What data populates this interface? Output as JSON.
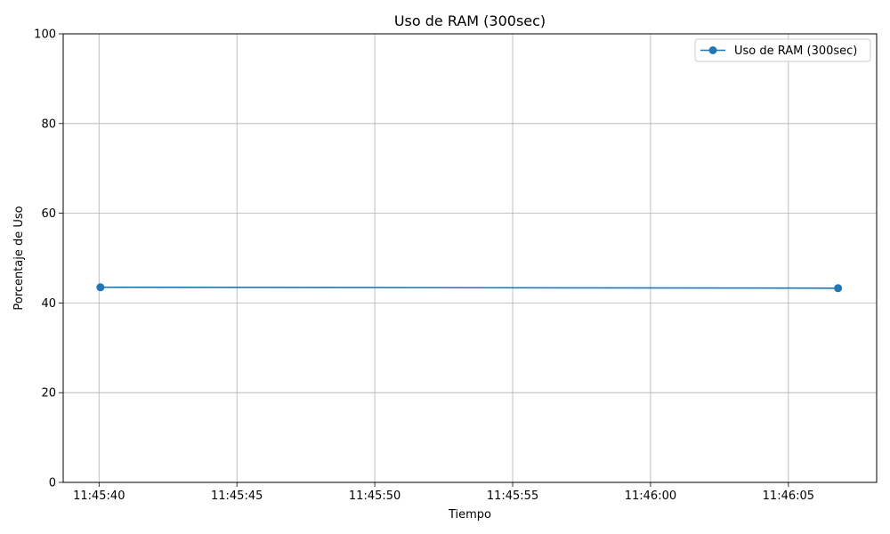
{
  "chart_data": {
    "type": "line",
    "title": "Uso de RAM (300sec)",
    "xlabel": "Tiempo",
    "ylabel": "Porcentaje de Uso",
    "x_ticks": [
      "11:45:40",
      "11:45:45",
      "11:45:50",
      "11:45:55",
      "11:46:00",
      "11:46:05"
    ],
    "x_tick_seconds": [
      0,
      5,
      10,
      15,
      20,
      25
    ],
    "xlim_seconds": [
      -1.3,
      28.2
    ],
    "ylim": [
      0,
      100
    ],
    "y_ticks": [
      0,
      20,
      40,
      60,
      80,
      100
    ],
    "y_tick_labels": [
      "0",
      "20",
      "40",
      "60",
      "80",
      "100"
    ],
    "grid": true,
    "legend_position": "top-right",
    "series": [
      {
        "name": "Uso de RAM (300sec)",
        "color": "#1f77b4",
        "marker": "circle",
        "x": [
          "11:45:40",
          "11:46:06.8"
        ],
        "x_seconds": [
          0.05,
          26.8
        ],
        "values": [
          43.5,
          43.3
        ]
      }
    ]
  }
}
